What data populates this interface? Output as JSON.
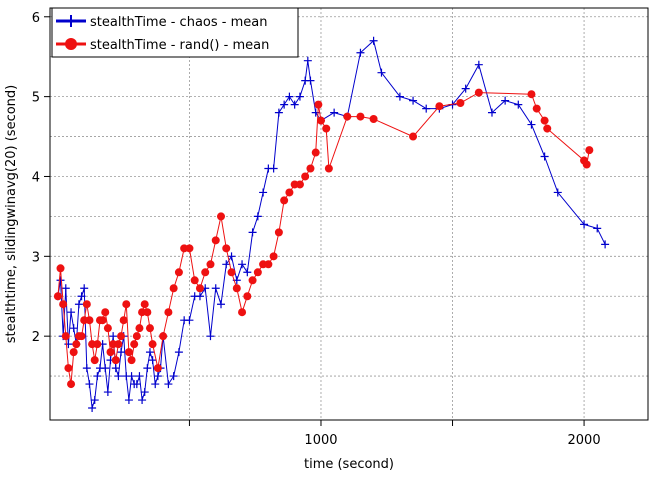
{
  "chart_data": {
    "type": "line",
    "xlabel": "time (second)",
    "ylabel": "stealthtime, slidingwinavg(20) (second)",
    "xlim": [
      -30,
      2243
    ],
    "ylim": [
      0.95,
      6.11
    ],
    "xticks": [
      1000,
      2000
    ],
    "xminor": [
      500,
      1500
    ],
    "yticks": [
      2,
      3,
      4,
      5,
      6
    ],
    "yminor": [
      1.5,
      2.5,
      3.5,
      4.5,
      5.5
    ],
    "grid": true,
    "legend": "upper left",
    "series": [
      {
        "name": "stealthTime - chaos - mean",
        "color": "#0000cc",
        "marker": "plus",
        "x": [
          0,
          10,
          20,
          30,
          40,
          50,
          60,
          70,
          80,
          90,
          100,
          110,
          120,
          130,
          140,
          150,
          160,
          170,
          180,
          190,
          200,
          210,
          220,
          230,
          240,
          250,
          260,
          270,
          280,
          290,
          300,
          310,
          320,
          330,
          340,
          350,
          360,
          370,
          380,
          390,
          400,
          420,
          440,
          460,
          480,
          500,
          520,
          540,
          560,
          580,
          600,
          620,
          640,
          660,
          680,
          700,
          720,
          740,
          760,
          780,
          800,
          820,
          840,
          860,
          880,
          900,
          920,
          940,
          950,
          960,
          980,
          1000,
          1050,
          1100,
          1150,
          1200,
          1230,
          1300,
          1350,
          1400,
          1450,
          1500,
          1550,
          1600,
          1650,
          1700,
          1750,
          1800,
          1850,
          1900,
          2000,
          2050,
          2080
        ],
        "values": [
          2.5,
          2.7,
          2.0,
          2.6,
          1.9,
          2.3,
          2.1,
          1.9,
          2.4,
          2.5,
          2.6,
          1.6,
          1.4,
          1.1,
          1.2,
          1.5,
          1.6,
          1.9,
          1.6,
          1.3,
          1.7,
          2.0,
          1.6,
          1.5,
          1.8,
          2.0,
          1.5,
          1.2,
          1.5,
          1.4,
          1.4,
          1.5,
          1.2,
          1.3,
          1.6,
          1.8,
          1.7,
          1.4,
          1.5,
          1.6,
          2.0,
          1.4,
          1.5,
          1.8,
          2.2,
          2.2,
          2.5,
          2.5,
          2.6,
          2.0,
          2.6,
          2.4,
          2.9,
          3.0,
          2.7,
          2.9,
          2.8,
          3.3,
          3.5,
          3.8,
          4.1,
          4.1,
          4.8,
          4.9,
          5.0,
          4.9,
          5.0,
          5.2,
          5.45,
          5.2,
          4.8,
          4.7,
          4.8,
          4.75,
          5.55,
          5.7,
          5.3,
          5.0,
          4.95,
          4.85,
          4.85,
          4.9,
          5.1,
          5.4,
          4.8,
          4.95,
          4.9,
          4.65,
          4.25,
          3.8,
          3.4,
          3.35,
          3.15
        ]
      },
      {
        "name": "stealthTime - rand() - mean",
        "color": "#ee1111",
        "marker": "circle",
        "x": [
          0,
          10,
          20,
          30,
          40,
          50,
          60,
          70,
          80,
          90,
          100,
          110,
          120,
          130,
          140,
          150,
          160,
          170,
          180,
          190,
          200,
          210,
          220,
          230,
          240,
          250,
          260,
          270,
          280,
          290,
          300,
          310,
          320,
          330,
          340,
          350,
          360,
          380,
          400,
          420,
          440,
          460,
          480,
          500,
          520,
          540,
          560,
          580,
          600,
          620,
          640,
          660,
          680,
          700,
          720,
          740,
          760,
          780,
          800,
          820,
          840,
          860,
          880,
          900,
          920,
          940,
          960,
          980,
          990,
          1000,
          1020,
          1030,
          1100,
          1150,
          1200,
          1350,
          1450,
          1530,
          1600,
          1800,
          1820,
          1850,
          1860,
          2000,
          2010,
          2020
        ],
        "values": [
          2.5,
          2.85,
          2.4,
          2.0,
          1.6,
          1.4,
          1.8,
          1.9,
          2.0,
          2.0,
          2.2,
          2.4,
          2.2,
          1.9,
          1.7,
          1.9,
          2.2,
          2.2,
          2.3,
          2.1,
          1.8,
          1.9,
          1.7,
          1.9,
          2.0,
          2.2,
          2.4,
          1.8,
          1.7,
          1.9,
          2.0,
          2.1,
          2.3,
          2.4,
          2.3,
          2.1,
          1.9,
          1.6,
          2.0,
          2.3,
          2.6,
          2.8,
          3.1,
          3.1,
          2.7,
          2.6,
          2.8,
          2.9,
          3.2,
          3.5,
          3.1,
          2.8,
          2.6,
          2.3,
          2.5,
          2.7,
          2.8,
          2.9,
          2.9,
          3.0,
          3.3,
          3.7,
          3.8,
          3.9,
          3.9,
          4.0,
          4.1,
          4.3,
          4.9,
          4.7,
          4.6,
          4.1,
          4.75,
          4.75,
          4.72,
          4.5,
          4.88,
          4.92,
          5.05,
          5.03,
          4.85,
          4.7,
          4.6,
          4.2,
          4.15,
          4.33
        ]
      }
    ]
  }
}
